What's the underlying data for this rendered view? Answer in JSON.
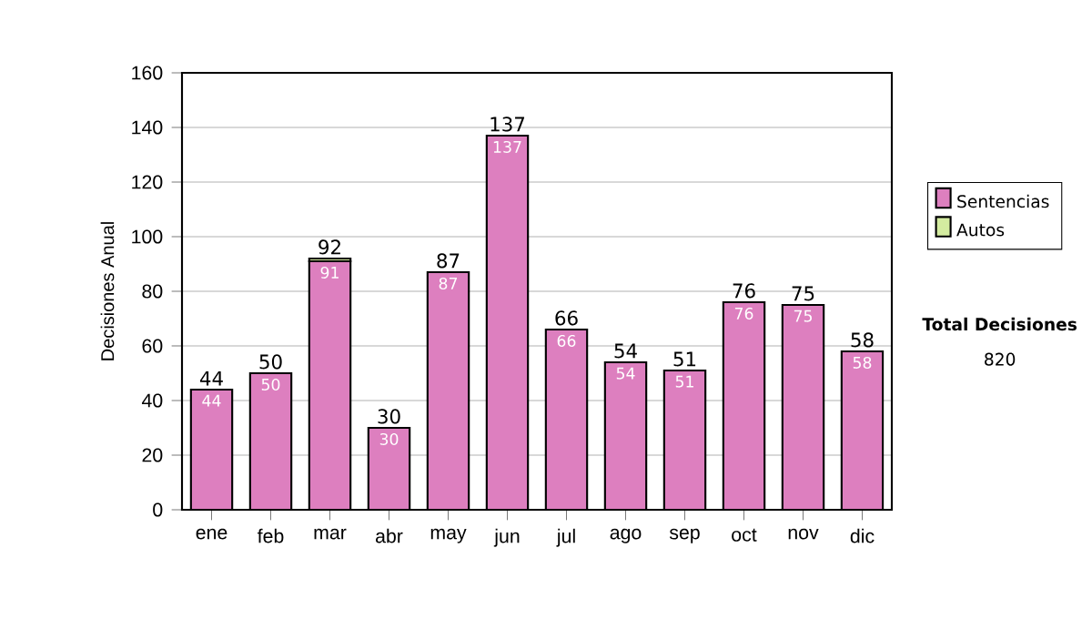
{
  "chart_data": {
    "type": "bar",
    "stacked": true,
    "ylabel": "Decisiones Anual",
    "categories": [
      "ene",
      "feb",
      "mar",
      "abr",
      "may",
      "jun",
      "jul",
      "ago",
      "sep",
      "oct",
      "nov",
      "dic"
    ],
    "series": [
      {
        "name": "Sentencias",
        "color": "#dd7fbf",
        "values": [
          44,
          50,
          91,
          30,
          87,
          137,
          66,
          54,
          51,
          76,
          75,
          58
        ],
        "value_labels": [
          "44",
          "50",
          "91",
          "30",
          "87",
          "137",
          "66",
          "54",
          "51",
          "76",
          "75",
          "58"
        ]
      },
      {
        "name": "Autos",
        "color": "#d4eca0",
        "values": [
          0,
          0,
          1,
          0,
          0,
          0,
          0,
          0,
          0,
          0,
          0,
          0
        ]
      }
    ],
    "totals": [
      "44",
      "50",
      "92",
      "30",
      "87",
      "137",
      "66",
      "54",
      "51",
      "76",
      "75",
      "58"
    ],
    "ylim": [
      0,
      160
    ],
    "yticks": [
      0,
      20,
      40,
      60,
      80,
      100,
      120,
      140,
      160
    ],
    "grid": "y",
    "legend": "right",
    "annotations": [
      "**Total Decisiones**",
      "820"
    ]
  }
}
